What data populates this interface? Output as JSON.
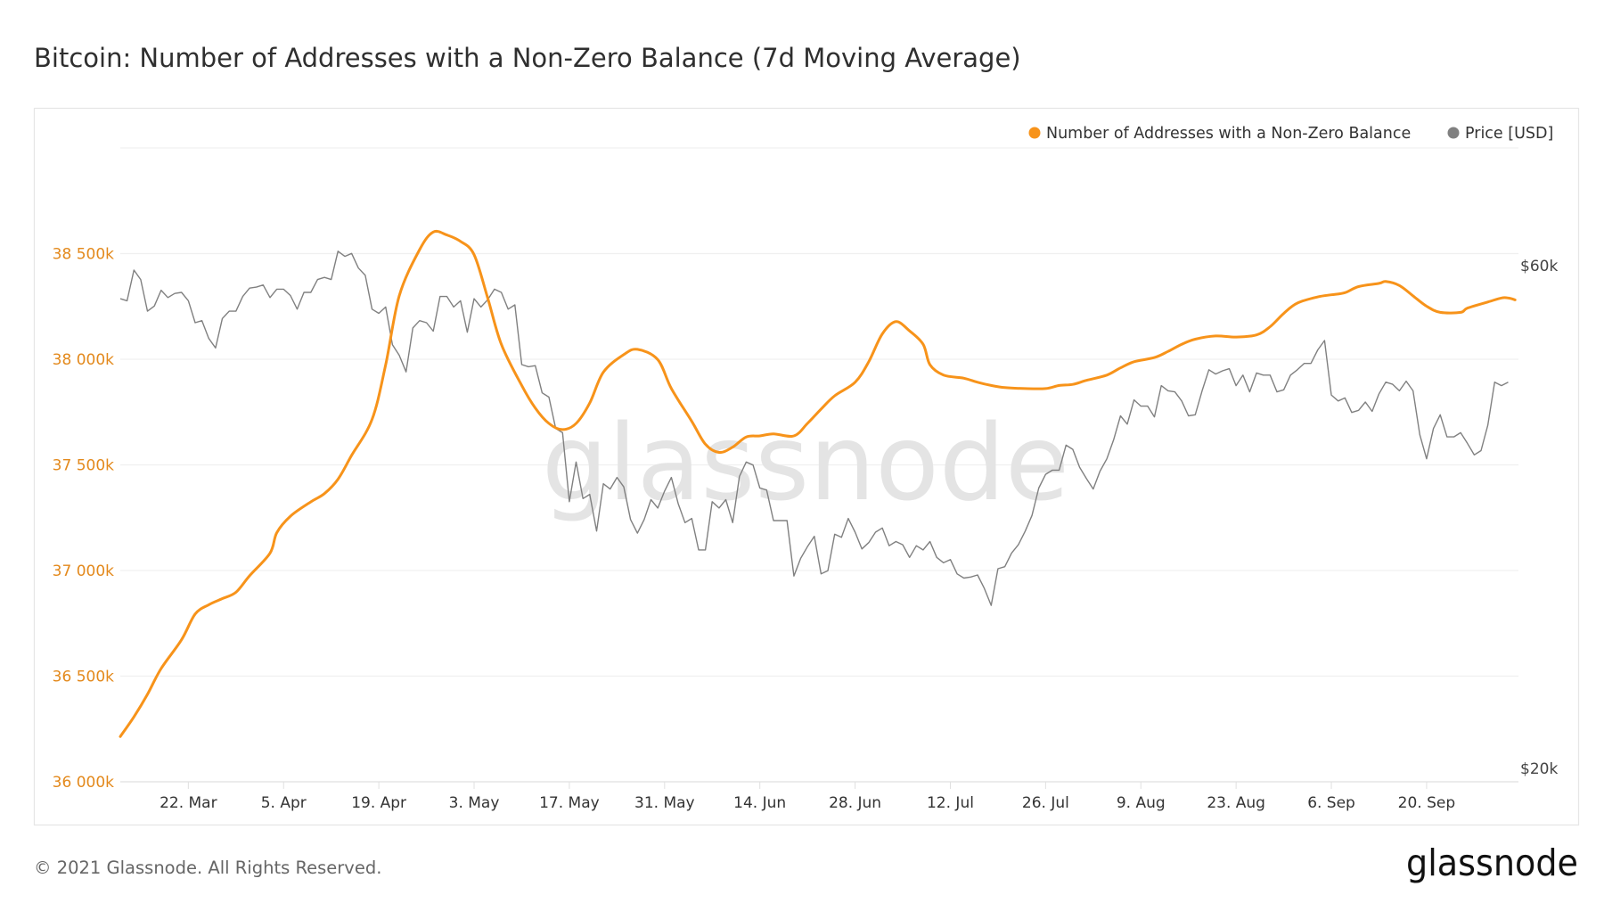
{
  "chart_data": {
    "type": "line",
    "title": "Bitcoin: Number of Addresses with a Non-Zero Balance (7d Moving Average)",
    "start_date": "2021-03-12",
    "x_unit": "days since start_date",
    "x_range": [
      0,
      205.5
    ],
    "x_ticks": [
      {
        "day": 10,
        "label": "22. Mar"
      },
      {
        "day": 24,
        "label": "5. Apr"
      },
      {
        "day": 38,
        "label": "19. Apr"
      },
      {
        "day": 52,
        "label": "3. May"
      },
      {
        "day": 66,
        "label": "17. May"
      },
      {
        "day": 80,
        "label": "31. May"
      },
      {
        "day": 94,
        "label": "14. Jun"
      },
      {
        "day": 108,
        "label": "28. Jun"
      },
      {
        "day": 122,
        "label": "12. Jul"
      },
      {
        "day": 136,
        "label": "26. Jul"
      },
      {
        "day": 150,
        "label": "9. Aug"
      },
      {
        "day": 164,
        "label": "23. Aug"
      },
      {
        "day": 178,
        "label": "6. Sep"
      },
      {
        "day": 192,
        "label": "20. Sep"
      }
    ],
    "y_left": {
      "ylim": [
        36000,
        39000
      ],
      "grid": [
        36000,
        36500,
        37000,
        37500,
        38000,
        38500,
        39000
      ],
      "ticks": [
        {
          "value": 36000,
          "label": "36 000k"
        },
        {
          "value": 36500,
          "label": "36 500k"
        },
        {
          "value": 37000,
          "label": "37 000k"
        },
        {
          "value": 37500,
          "label": "37 500k"
        },
        {
          "value": 38000,
          "label": "38 000k"
        },
        {
          "value": 38500,
          "label": "38 500k"
        }
      ]
    },
    "y_right": {
      "scale": "log",
      "ylim": [
        20000,
        60000
      ],
      "ticks": [
        {
          "value": 60000,
          "label": "$60k"
        },
        {
          "value": 20000,
          "label": "$20k"
        }
      ]
    },
    "legend_position": "top-right",
    "series": [
      {
        "name": "Number of Addresses with a Non-Zero Balance",
        "color": "#f7931a",
        "unit": "thousands",
        "points": [
          [
            0,
            36214
          ],
          [
            2,
            36307
          ],
          [
            4,
            36414
          ],
          [
            6,
            36536
          ],
          [
            9,
            36672
          ],
          [
            11,
            36794
          ],
          [
            13,
            36838
          ],
          [
            15,
            36867
          ],
          [
            17,
            36897
          ],
          [
            19,
            36975
          ],
          [
            22,
            37082
          ],
          [
            23,
            37179
          ],
          [
            25,
            37257
          ],
          [
            28,
            37325
          ],
          [
            30,
            37364
          ],
          [
            32,
            37432
          ],
          [
            34,
            37545
          ],
          [
            37,
            37715
          ],
          [
            39,
            37974
          ],
          [
            41,
            38300
          ],
          [
            44,
            38519
          ],
          [
            46,
            38602
          ],
          [
            48,
            38588
          ],
          [
            50,
            38558
          ],
          [
            52,
            38495
          ],
          [
            54,
            38290
          ],
          [
            56,
            38071
          ],
          [
            59,
            37876
          ],
          [
            61,
            37769
          ],
          [
            63,
            37696
          ],
          [
            65,
            37667
          ],
          [
            67,
            37696
          ],
          [
            69,
            37793
          ],
          [
            71,
            37939
          ],
          [
            74,
            38022
          ],
          [
            76,
            38047
          ],
          [
            79,
            37998
          ],
          [
            81,
            37861
          ],
          [
            84,
            37706
          ],
          [
            86,
            37598
          ],
          [
            88,
            37559
          ],
          [
            90,
            37584
          ],
          [
            92,
            37632
          ],
          [
            94,
            37637
          ],
          [
            96,
            37647
          ],
          [
            99,
            37637
          ],
          [
            101,
            37696
          ],
          [
            103,
            37764
          ],
          [
            105,
            37827
          ],
          [
            108,
            37891
          ],
          [
            110,
            37988
          ],
          [
            112,
            38120
          ],
          [
            114,
            38178
          ],
          [
            116,
            38134
          ],
          [
            118,
            38071
          ],
          [
            119,
            37974
          ],
          [
            121,
            37925
          ],
          [
            124,
            37910
          ],
          [
            126,
            37891
          ],
          [
            128,
            37876
          ],
          [
            130,
            37866
          ],
          [
            133,
            37861
          ],
          [
            136,
            37861
          ],
          [
            138,
            37876
          ],
          [
            140,
            37881
          ],
          [
            142,
            37900
          ],
          [
            145,
            37925
          ],
          [
            147,
            37959
          ],
          [
            149,
            37988
          ],
          [
            152,
            38008
          ],
          [
            154,
            38037
          ],
          [
            156,
            38071
          ],
          [
            158,
            38095
          ],
          [
            161,
            38110
          ],
          [
            164,
            38105
          ],
          [
            167,
            38115
          ],
          [
            169,
            38154
          ],
          [
            171,
            38217
          ],
          [
            173,
            38266
          ],
          [
            176,
            38295
          ],
          [
            178,
            38305
          ],
          [
            180,
            38315
          ],
          [
            182,
            38344
          ],
          [
            185,
            38359
          ],
          [
            186,
            38368
          ],
          [
            188,
            38349
          ],
          [
            190,
            38300
          ],
          [
            192,
            38251
          ],
          [
            194,
            38222
          ],
          [
            197,
            38222
          ],
          [
            198,
            38242
          ],
          [
            201,
            38271
          ],
          [
            203,
            38290
          ],
          [
            204,
            38290
          ],
          [
            205,
            38281
          ]
        ]
      },
      {
        "name": "Price [USD]",
        "color": "#808080",
        "axis": "right",
        "step_days": 1,
        "values": [
          56430,
          56180,
          60000,
          58800,
          54930,
          55550,
          57460,
          56560,
          57070,
          57200,
          56180,
          53590,
          53830,
          51810,
          50770,
          54080,
          54930,
          54930,
          56690,
          57720,
          57850,
          58110,
          56560,
          57590,
          57590,
          56820,
          55180,
          57200,
          57200,
          58800,
          59070,
          58800,
          62480,
          61790,
          62190,
          60270,
          59330,
          55180,
          54680,
          55430,
          51110,
          49980,
          48220,
          52990,
          53830,
          53590,
          52630,
          56690,
          56690,
          55430,
          56180,
          52510,
          56430,
          55430,
          56300,
          57590,
          57200,
          55180,
          55680,
          48980,
          48760,
          48870,
          46100,
          45680,
          42700,
          42320,
          36490,
          39740,
          36740,
          37070,
          34260,
          37920,
          37500,
          38440,
          37670,
          35120,
          34110,
          35120,
          36650,
          36000,
          37330,
          38440,
          36330,
          34890,
          35200,
          32900,
          32900,
          36490,
          36000,
          36650,
          34890,
          38520,
          39740,
          39480,
          37580,
          37420,
          35040,
          35040,
          35040,
          31110,
          32310,
          33130,
          33880,
          31250,
          31460,
          34030,
          33800,
          35200,
          34180,
          32970,
          33420,
          34180,
          34490,
          33200,
          33500,
          33270,
          32380,
          33200,
          32900,
          33500,
          32380,
          32010,
          32230,
          31250,
          30970,
          31040,
          31180,
          30290,
          29210,
          31600,
          31740,
          32680,
          33270,
          34260,
          35430,
          37580,
          38700,
          39050,
          39050,
          41200,
          40830,
          39300,
          38350,
          37500,
          38960,
          40010,
          41680,
          43880,
          43100,
          45410,
          44800,
          44800,
          43780,
          46820,
          46300,
          46200,
          45300,
          43880,
          43980,
          46300,
          48440,
          48000,
          48330,
          48550,
          46820,
          47890,
          46200,
          48110,
          47890,
          47890,
          46200,
          46400,
          47890,
          48440,
          49100,
          49100,
          50550,
          51580,
          45890,
          45300,
          45600,
          44200,
          44400,
          45200,
          44300,
          46000,
          47170,
          46950,
          46300,
          47270,
          46300,
          42130,
          40010,
          42700,
          43980,
          41940,
          41940,
          42320,
          41370,
          40350,
          40720,
          43000,
          47170,
          46820,
          47170
        ]
      }
    ]
  },
  "watermark": "glassnode",
  "footer": {
    "copyright": "© 2021 Glassnode. All Rights Reserved.",
    "logo": "glassnode"
  }
}
